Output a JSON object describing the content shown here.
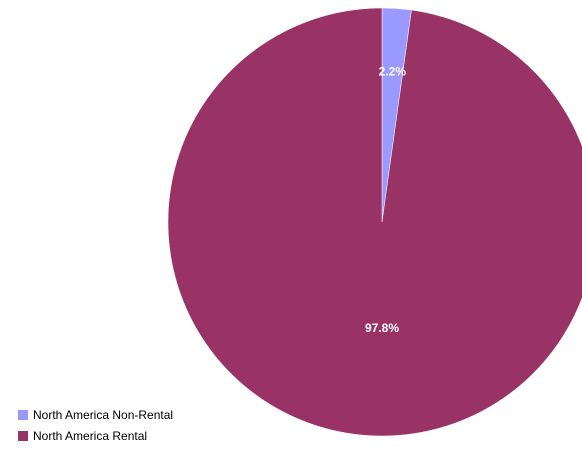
{
  "chart_data": {
    "type": "pie",
    "slices": [
      {
        "label": "North America Non-Rental",
        "value": 2.2,
        "display": "2.2%",
        "color": "#9999ff"
      },
      {
        "label": "North America Rental",
        "value": 97.8,
        "display": "97.8%",
        "color": "#993366"
      }
    ],
    "legend_position": "bottom-left"
  }
}
